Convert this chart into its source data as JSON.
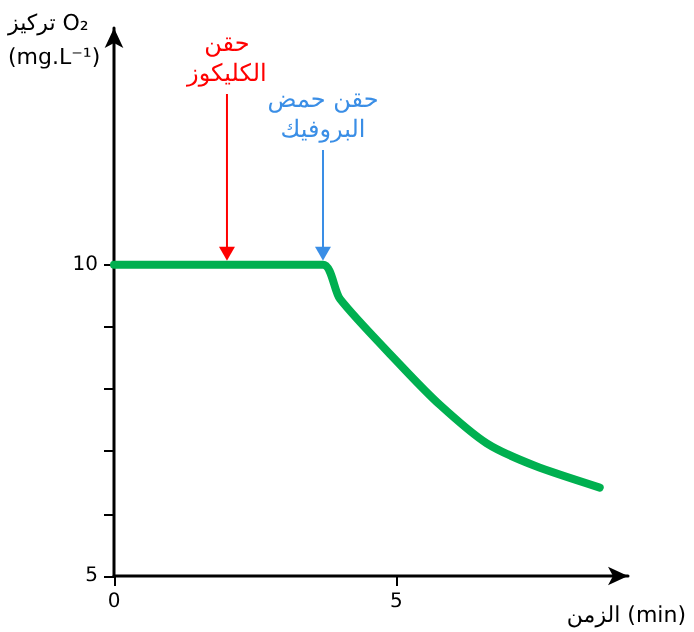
{
  "chart_data": {
    "type": "line",
    "xlabel": "الزمن (min)",
    "ylabel": "تركيز O₂\n(mg.L⁻¹)",
    "x": [
      0,
      3.7,
      4.0,
      5.07,
      5.78,
      6.6,
      7.45,
      8.6
    ],
    "series": [
      {
        "color": "#00b050",
        "values": [
          10,
          10,
          9.45,
          8.39,
          7.74,
          7.13,
          6.77,
          6.42
        ]
      }
    ],
    "xlim": [
      0,
      9.1
    ],
    "xticks": [
      0,
      5
    ],
    "ylim": [
      5,
      13.8
    ],
    "yticks": [
      5,
      {
        "value": 6,
        "label": null
      },
      {
        "value": 7,
        "label": null
      },
      {
        "value": 8,
        "label": null
      },
      {
        "value": 9,
        "label": null
      },
      10
    ],
    "annotations": [
      {
        "text": "حقن\nالكليكوز",
        "x": 2,
        "y": 10
      },
      {
        "text": "حقن حمض\nالبروفيك",
        "x": 3.7,
        "y": 10
      }
    ],
    "grid": false,
    "marker": "none",
    "line_style": "solid"
  }
}
